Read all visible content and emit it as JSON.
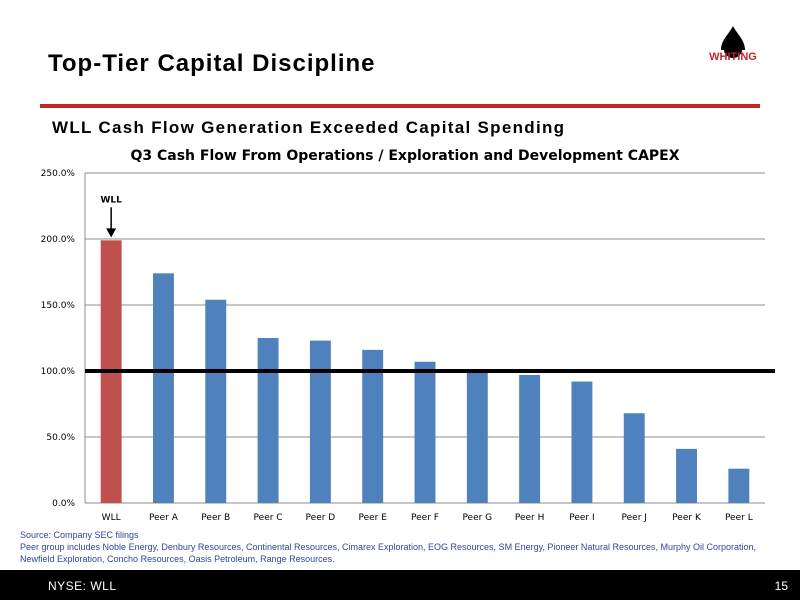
{
  "slide": {
    "title": "Top-Tier Capital Discipline",
    "subtitle": "WLL Cash Flow Generation Exceeded Capital Spending",
    "logo_text": "WHITING",
    "accent_color": "#c0272d",
    "bar_color": "#4f81bd",
    "highlight_color": "#c0504d"
  },
  "chart_data": {
    "type": "bar",
    "title": "Q3 Cash Flow From Operations / Exploration and Development CAPEX",
    "categories": [
      "WLL",
      "Peer A",
      "Peer B",
      "Peer C",
      "Peer D",
      "Peer E",
      "Peer F",
      "Peer G",
      "Peer H",
      "Peer I",
      "Peer J",
      "Peer K",
      "Peer L"
    ],
    "values": [
      199,
      174,
      154,
      125,
      123,
      116,
      107,
      99,
      97,
      92,
      68,
      41,
      26
    ],
    "value_unit": "%",
    "ylim": [
      0,
      250
    ],
    "yticks": [
      "0.0%",
      "50.0%",
      "100.0%",
      "150.0%",
      "200.0%",
      "250.0%"
    ],
    "ytick_values": [
      0,
      50,
      100,
      150,
      200,
      250
    ],
    "grid": true,
    "reference_line": 100,
    "highlight_category": "WLL",
    "annotation": "WLL"
  },
  "source": {
    "line1": "Source: Company SEC filings",
    "line2": "Peer group includes Noble Energy, Denbury Resources, Continental Resources, Cimarex Exploration, EOG Resources, SM Energy, Pioneer Natural Resources, Murphy Oil Corporation, Newfield Exploration, Concho Resources, Oasis Petroleum, Range Resources."
  },
  "footer": {
    "ticker": "NYSE:  WLL",
    "page": "15"
  }
}
